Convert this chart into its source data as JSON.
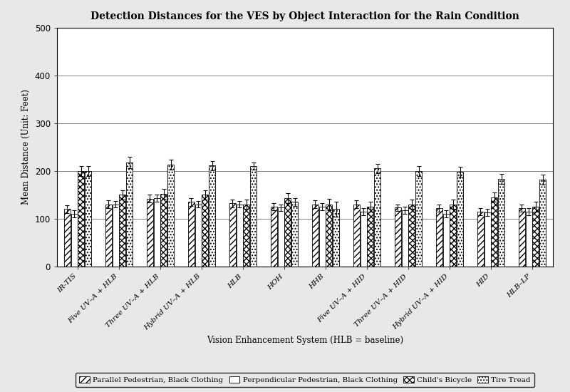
{
  "title": "Detection Distances for the VES by Object Interaction for the Rain Condition",
  "xlabel": "Vision Enhancement System (HLB = baseline)",
  "ylabel": "Mean Distance (Unit: Feet)",
  "ylim": [
    0,
    500
  ],
  "yticks": [
    0,
    100,
    200,
    300,
    400,
    500
  ],
  "categories": [
    "IR-TIS",
    "Five UV–A + HLB",
    "Three UV–A + HLB",
    "Hybrid UV–A + HLB",
    "HLB",
    "HOH",
    "HHB",
    "Five UV–A + HID",
    "Three UV–A + HID",
    "Hybrid UV–A + HID",
    "HID",
    "HLB–LP"
  ],
  "series_labels": [
    "Parallel Pedestrian, Black Clothing",
    "Perpendicular Pedestrian, Black Clothing",
    "Child's Bicycle",
    "Tire Tread"
  ],
  "values": [
    [
      120,
      130,
      142,
      135,
      132,
      125,
      130,
      130,
      123,
      122,
      115,
      122
    ],
    [
      110,
      130,
      143,
      130,
      130,
      123,
      125,
      115,
      118,
      110,
      113,
      115
    ],
    [
      200,
      150,
      152,
      150,
      130,
      143,
      130,
      125,
      130,
      130,
      145,
      125
    ],
    [
      200,
      218,
      213,
      211,
      210,
      135,
      120,
      205,
      200,
      198,
      183,
      182
    ]
  ],
  "errors": [
    [
      8,
      8,
      8,
      8,
      8,
      7,
      8,
      8,
      7,
      7,
      7,
      7
    ],
    [
      7,
      7,
      7,
      7,
      7,
      7,
      7,
      7,
      7,
      7,
      7,
      7
    ],
    [
      10,
      10,
      10,
      10,
      10,
      10,
      12,
      10,
      10,
      10,
      10,
      10
    ],
    [
      10,
      12,
      10,
      10,
      8,
      8,
      15,
      10,
      10,
      10,
      10,
      10
    ]
  ],
  "background_color": "#e8e8e8",
  "plot_bg_color": "#ffffff",
  "border_color": "#000000"
}
